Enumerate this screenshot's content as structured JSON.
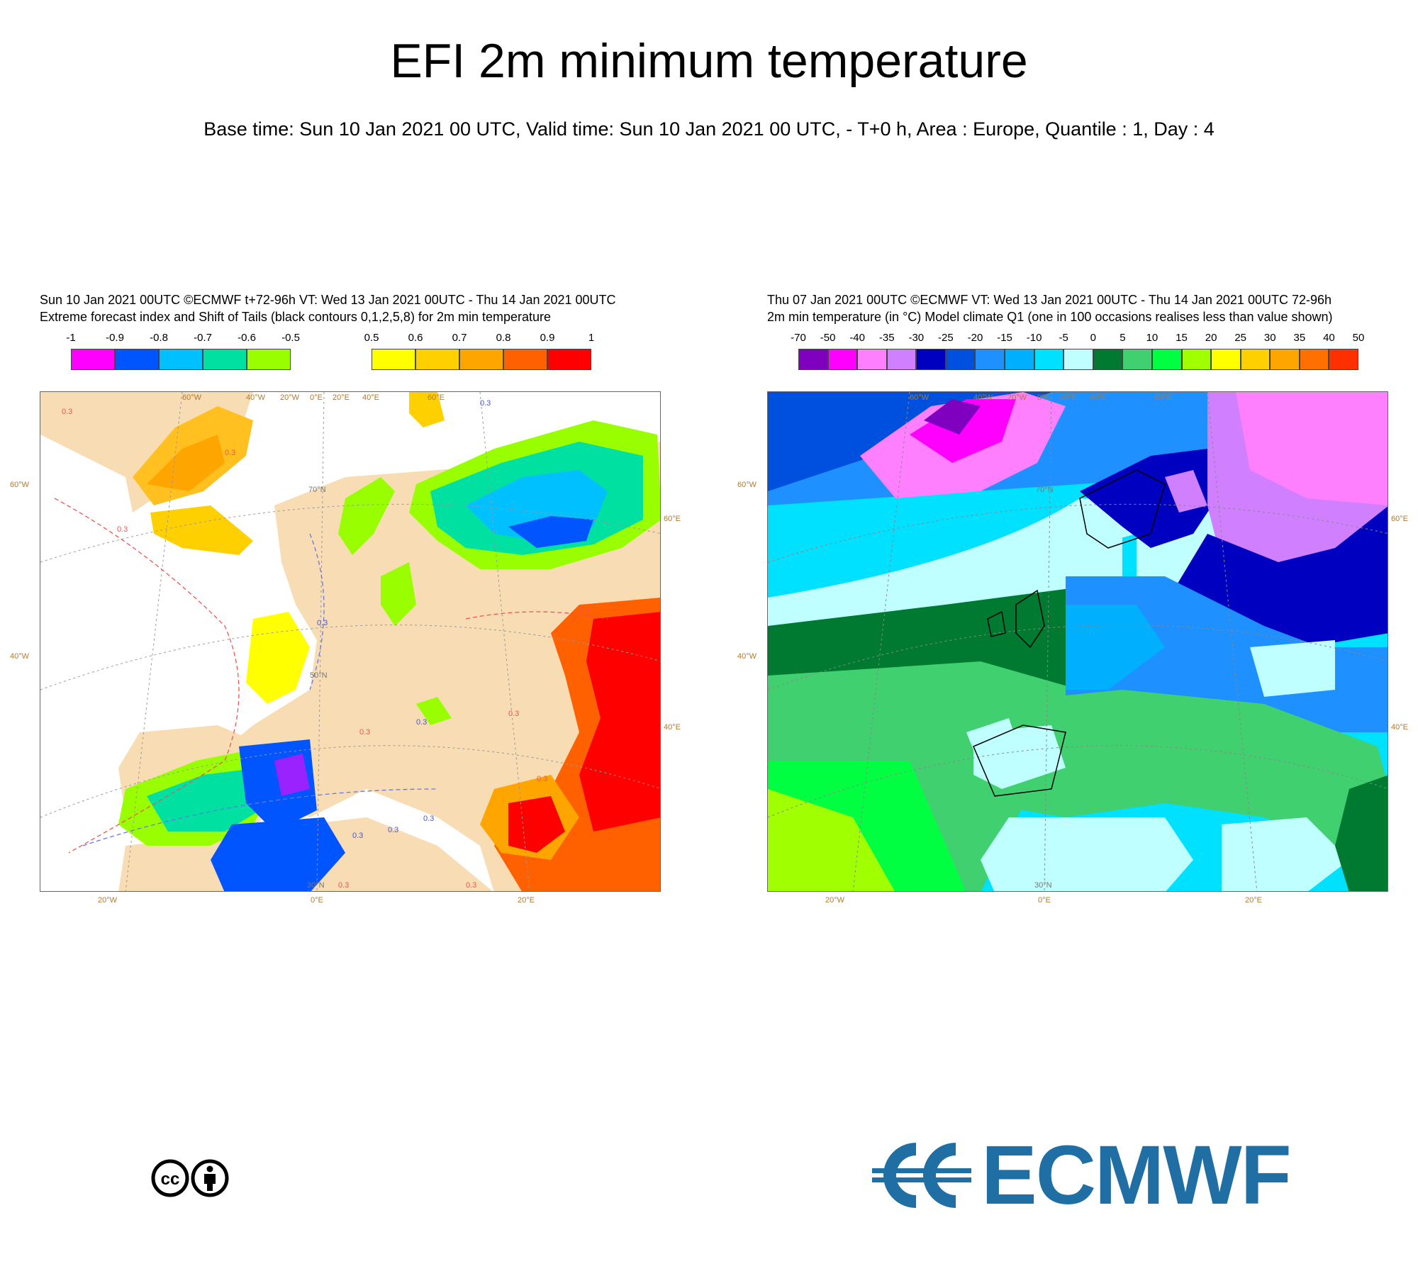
{
  "title": "EFI 2m minimum temperature",
  "subtitle": "Base time: Sun 10 Jan 2021 00 UTC, Valid time: Sun 10 Jan 2021 00 UTC, - T+0 h, Area : Europe, Quantile : 1, Day : 4",
  "left_panel": {
    "header_line1": "Sun 10 Jan 2021 00UTC ©ECMWF t+72-96h  VT: Wed 13 Jan 2021 00UTC - Thu 14 Jan 2021 00UTC",
    "header_line2": "Extreme forecast index and Shift of Tails (black contours 0,1,2,5,8) for 2m min temperature",
    "colorbar_cold": {
      "ticks": [
        "-1",
        "-0.9",
        "-0.8",
        "-0.7",
        "-0.6",
        "-0.5"
      ],
      "colors": [
        "#ff00ff",
        "#0055ff",
        "#00c0ff",
        "#00e0a0",
        "#99ff00"
      ]
    },
    "colorbar_warm": {
      "ticks": [
        "0.5",
        "0.6",
        "0.7",
        "0.8",
        "0.9",
        "1"
      ],
      "colors": [
        "#ffff00",
        "#ffd000",
        "#ffa500",
        "#ff6000",
        "#ff0000"
      ]
    },
    "lon_top": [
      "60°W",
      "40°W",
      "20°W",
      "0°E",
      "20°E",
      "40°E",
      "60°E"
    ],
    "lon_bottom": [
      "20°W",
      "0°E",
      "20°E"
    ],
    "lat_left": [
      "60°W",
      "40°W"
    ],
    "lat_right": [
      "60°E",
      "40°E"
    ],
    "lat_inner": [
      "70°N",
      "50°N",
      "30°N"
    ],
    "contour_labels": [
      "0.3",
      "0.3",
      "0.3",
      "0.3",
      "0.3",
      "0.3",
      "0.3",
      "0.3",
      "0.3",
      "0.3",
      "0.3",
      "0.3",
      "0.3",
      "0.3",
      "0.3"
    ]
  },
  "right_panel": {
    "header_line1": "Thu 07 Jan 2021 00UTC ©ECMWF VT: Wed 13 Jan 2021 00UTC - Thu 14 Jan 2021 00UTC   72-96h",
    "header_line2": "2m min temperature (in °C)  Model climate Q1 (one in 100 occasions realises less than value shown)",
    "colorbar": {
      "ticks": [
        "-70",
        "-50",
        "-40",
        "-35",
        "-30",
        "-25",
        "-20",
        "-15",
        "-10",
        "-5",
        "0",
        "5",
        "10",
        "15",
        "20",
        "25",
        "30",
        "35",
        "40",
        "50"
      ],
      "colors": [
        "#8000c0",
        "#ff00ff",
        "#ff80ff",
        "#d080ff",
        "#0000c0",
        "#0050e0",
        "#1e90ff",
        "#00b0ff",
        "#00e0ff",
        "#c0ffff",
        "#007a30",
        "#40d070",
        "#00ff40",
        "#a0ff00",
        "#ffff00",
        "#ffd000",
        "#ffa500",
        "#ff7000",
        "#ff3000"
      ]
    },
    "lon_top": [
      "60°W",
      "40°W",
      "20°W",
      "0°E",
      "20°E",
      "40°E",
      "60°E"
    ],
    "lon_bottom": [
      "20°W",
      "0°E",
      "20°E"
    ],
    "lat_left": [
      "60°W",
      "40°W"
    ],
    "lat_right": [
      "60°E",
      "40°E"
    ],
    "lat_inner": [
      "70°N",
      "30°N"
    ]
  },
  "logos": {
    "license_icon": "cc-by-icon",
    "org_name": "ECMWF",
    "org_color": "#1f6ea4"
  }
}
